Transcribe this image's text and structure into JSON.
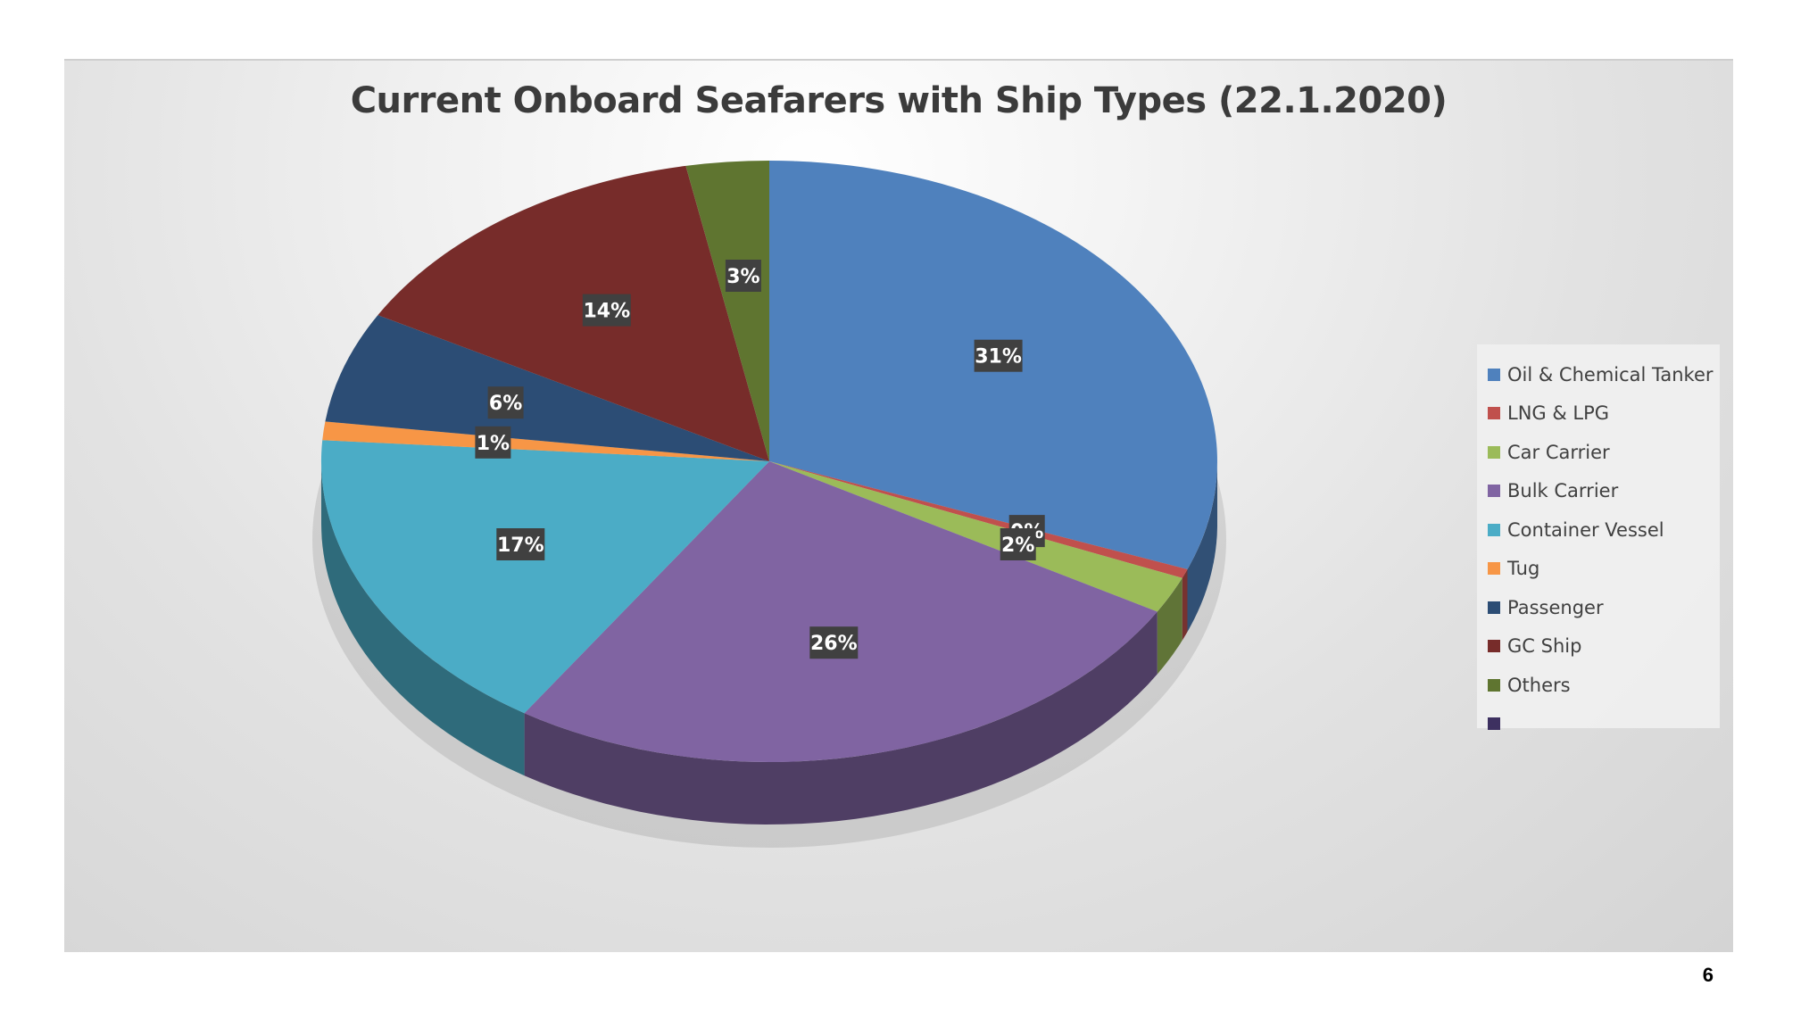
{
  "chart_data": {
    "type": "pie",
    "style": "3d",
    "title": "Current Onboard Seafarers with Ship Types (22.1.2020)",
    "categories": [
      "Oil & Chemical Tanker",
      "LNG & LPG",
      "Car Carrier",
      "Bulk Carrier",
      "Container Vessel",
      "Tug",
      "Passenger",
      "GC Ship",
      "Others",
      ""
    ],
    "values": [
      31,
      0.5,
      2,
      26,
      17,
      1,
      6,
      14,
      3,
      0
    ],
    "data_labels": [
      "31%",
      "0%",
      "2%",
      "26%",
      "17%",
      "1%",
      "6%",
      "14%",
      "3%",
      ""
    ],
    "colors": [
      "#4f81bd",
      "#c0504d",
      "#9bbb59",
      "#8064a2",
      "#4bacc6",
      "#f79646",
      "#2c4d75",
      "#772c2a",
      "#5f7530",
      "#3d3060"
    ],
    "legend_position": "right",
    "grid": false
  },
  "page": {
    "number": "6"
  }
}
